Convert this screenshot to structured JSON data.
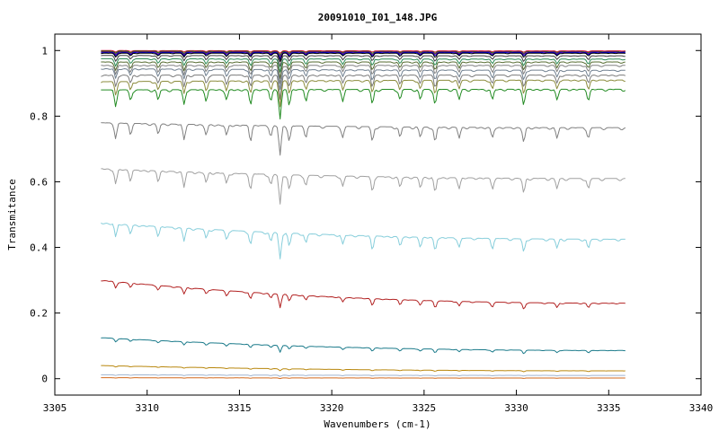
{
  "chart_data": {
    "type": "line",
    "title": "20091010_I01_148.JPG",
    "xlabel": "Wavenumbers (cm-1)",
    "ylabel": "Transmitance",
    "xlim": [
      3305,
      3340
    ],
    "ylim": [
      -0.05,
      1.05
    ],
    "x_ticks": [
      3305,
      3310,
      3315,
      3320,
      3325,
      3330,
      3335,
      3340
    ],
    "y_ticks": [
      0,
      0.2,
      0.4,
      0.6,
      0.8,
      1
    ],
    "y_tick_labels": [
      "0",
      "0.2",
      "0.4",
      "0.6",
      "0.8",
      "1"
    ],
    "grid": false,
    "x_range_of_data": [
      3307.5,
      3335.9
    ],
    "absorption_lines": [
      3308.3,
      3309.1,
      3310.6,
      3312.0,
      3313.2,
      3314.3,
      3315.6,
      3316.7,
      3317.2,
      3317.7,
      3318.6,
      3320.6,
      3322.2,
      3323.7,
      3324.8,
      3325.6,
      3326.9,
      3328.7,
      3330.4,
      3332.2,
      3333.9
    ],
    "series": [
      {
        "color": "#dc143c",
        "values": [
          1.0,
          0.999
        ],
        "depth": 0.004
      },
      {
        "color": "#008000",
        "values": [
          0.998,
          0.997
        ],
        "depth": 0.006
      },
      {
        "color": "#800080",
        "values": [
          0.996,
          0.996
        ],
        "depth": 0.008
      },
      {
        "color": "#0000cd",
        "values": [
          0.994,
          0.994
        ],
        "depth": 0.01
      },
      {
        "color": "#000000",
        "values": [
          0.992,
          0.992
        ],
        "depth": 0.012
      },
      {
        "color": "#404040",
        "values": [
          0.985,
          0.984
        ],
        "depth": 0.016
      },
      {
        "color": "#2e8b57",
        "values": [
          0.975,
          0.974
        ],
        "depth": 0.02
      },
      {
        "color": "#556b2f",
        "values": [
          0.965,
          0.965
        ],
        "depth": 0.025
      },
      {
        "color": "#808080",
        "values": [
          0.955,
          0.955
        ],
        "depth": 0.028
      },
      {
        "color": "#708090",
        "values": [
          0.945,
          0.94
        ],
        "depth": 0.03
      },
      {
        "color": "#7a7a7a",
        "values": [
          0.925,
          0.925
        ],
        "depth": 0.035
      },
      {
        "color": "#8b8b3c",
        "values": [
          0.905,
          0.91
        ],
        "depth": 0.038
      },
      {
        "color": "#228b22",
        "values": [
          0.88,
          0.882
        ],
        "depth": 0.045
      },
      {
        "color": "#808080",
        "values": [
          0.78,
          0.765
        ],
        "depth": 0.045
      },
      {
        "color": "#a0a0a0",
        "values": [
          0.64,
          0.61
        ],
        "depth": 0.045
      },
      {
        "color": "#87cedb",
        "values": [
          0.475,
          0.425
        ],
        "depth": 0.04
      },
      {
        "color": "#b22222",
        "values": [
          0.3,
          0.23
        ],
        "depth": 0.02
      },
      {
        "color": "#1a7a8a",
        "values": [
          0.125,
          0.086
        ],
        "depth": 0.01
      },
      {
        "color": "#b8860b",
        "values": [
          0.04,
          0.024
        ],
        "depth": 0.003
      },
      {
        "color": "#9fb4d0",
        "values": [
          0.012,
          0.01
        ],
        "depth": 0.002
      },
      {
        "color": "#d2691e",
        "values": [
          0.003,
          0.002
        ],
        "depth": 0.001
      }
    ]
  }
}
